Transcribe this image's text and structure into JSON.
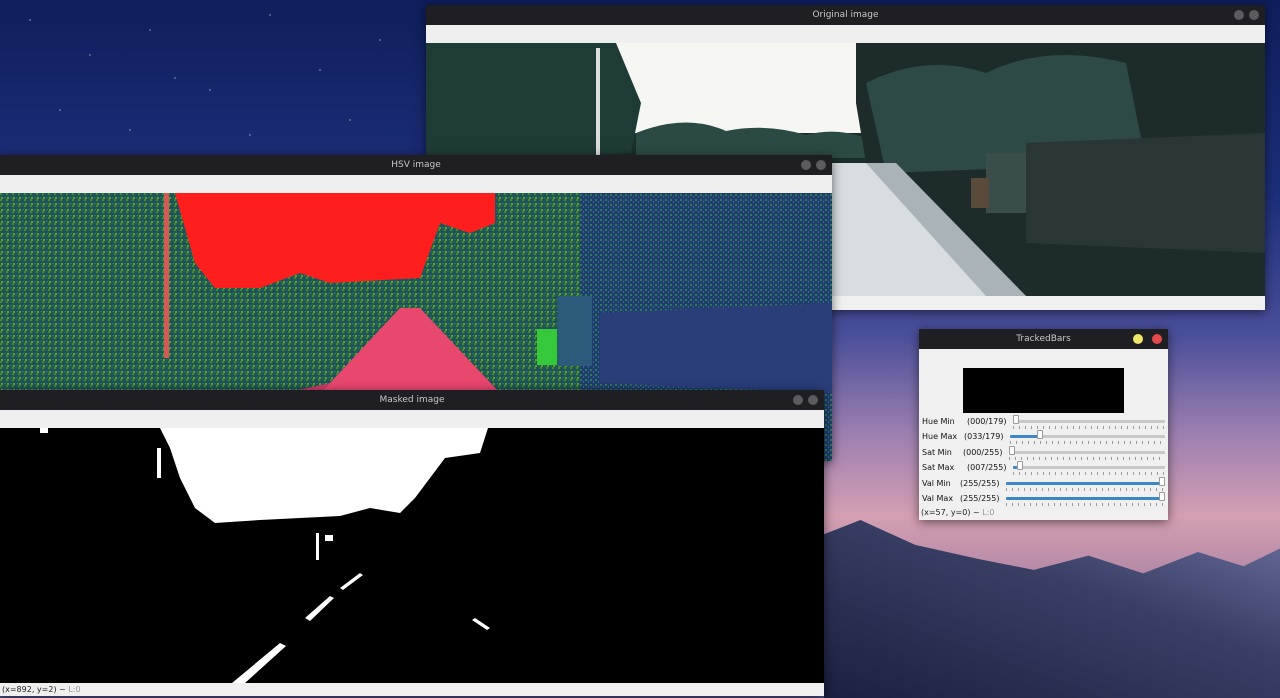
{
  "windows": {
    "original": {
      "title": "Original image"
    },
    "hsv": {
      "title": "HSV image"
    },
    "masked": {
      "title": "Masked image",
      "status_coords": "(x=892, y=2) ~",
      "status_level": "L:0"
    },
    "tracked": {
      "title": "TrackedBars",
      "status_coords": "(x=57, y=0) ~",
      "status_level": "L:0"
    }
  },
  "trackbars": [
    {
      "label": "Hue Min",
      "display": "(000/179)",
      "value": 0,
      "max": 179
    },
    {
      "label": "Hue Max",
      "display": "(033/179)",
      "value": 33,
      "max": 179
    },
    {
      "label": "Sat Min",
      "display": "(000/255)",
      "value": 0,
      "max": 255
    },
    {
      "label": "Sat Max",
      "display": "(007/255)",
      "value": 7,
      "max": 255
    },
    {
      "label": "Val Min",
      "display": "(255/255)",
      "value": 255,
      "max": 255
    },
    {
      "label": "Val Max",
      "display": "(255/255)",
      "value": 255,
      "max": 255
    }
  ],
  "colors": {
    "titlebar": "#1e1e23",
    "accent": "#3c87c8",
    "hsv_sky": "#ff1e1e",
    "minimize": "#f0e76a",
    "close": "#e4494b"
  }
}
